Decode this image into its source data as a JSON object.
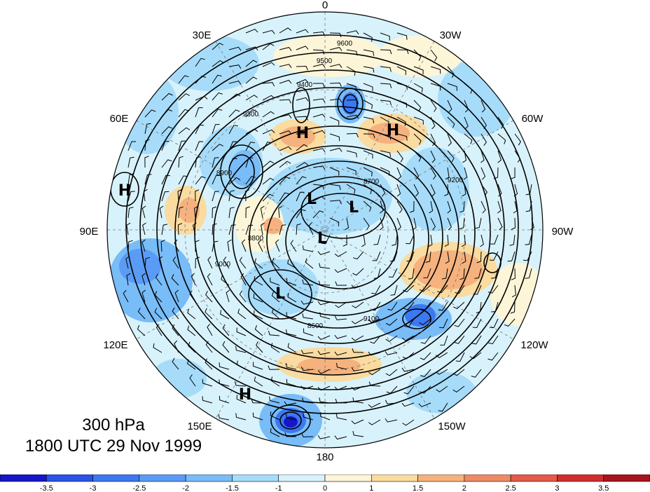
{
  "title": {
    "level": "300 hPa",
    "time": "1800 UTC 29 Nov 1999"
  },
  "longitude_labels": [
    {
      "text": "0",
      "deg": 0
    },
    {
      "text": "30W",
      "deg": -30
    },
    {
      "text": "60W",
      "deg": -60
    },
    {
      "text": "90W",
      "deg": -90
    },
    {
      "text": "120W",
      "deg": -120
    },
    {
      "text": "150W",
      "deg": -150
    },
    {
      "text": "180",
      "deg": 180
    },
    {
      "text": "150E",
      "deg": 150
    },
    {
      "text": "120E",
      "deg": 120
    },
    {
      "text": "90E",
      "deg": 90
    },
    {
      "text": "60E",
      "deg": 60
    },
    {
      "text": "30E",
      "deg": 30
    }
  ],
  "pressure_centers": [
    "H",
    "H",
    "H",
    "H",
    "L",
    "L",
    "L",
    "L"
  ],
  "contour_labels": [
    "9600",
    "9500",
    "9400",
    "9300",
    "9200",
    "9100",
    "9000",
    "8900",
    "8800",
    "8700",
    "8600"
  ],
  "colorbar": {
    "levels": [
      "-3.5",
      "-3",
      "-2.5",
      "-2",
      "-1.5",
      "-1",
      "0",
      "1",
      "1.5",
      "2",
      "2.5",
      "3",
      "3.5"
    ],
    "colors": [
      "#1616c8",
      "#2a52e6",
      "#3c78f0",
      "#5a9cf5",
      "#78bcf8",
      "#a6dcfa",
      "#d8f2fb",
      "#fcf5d8",
      "#fadba0",
      "#f5b27e",
      "#ee8a66",
      "#e55a4a",
      "#d02e2e",
      "#a8141e"
    ]
  }
}
